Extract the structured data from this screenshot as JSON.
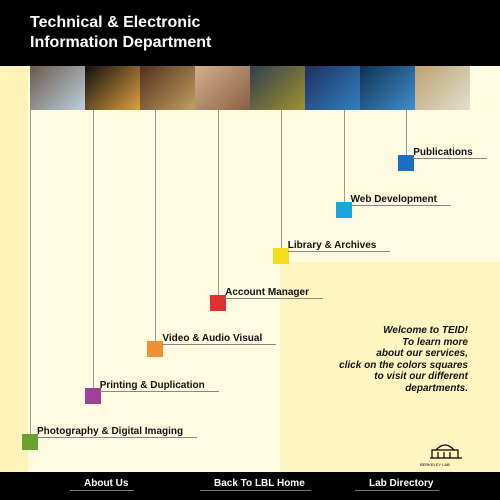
{
  "header": {
    "title_lines": [
      "Technical & Electronic",
      "Information Department"
    ]
  },
  "departments": [
    {
      "label": "Publications",
      "color": "#1a6fc4"
    },
    {
      "label": "Web Development",
      "color": "#1aa3e0"
    },
    {
      "label": "Library & Archives",
      "color": "#f5dc1c"
    },
    {
      "label": "Account Manager",
      "color": "#e03030"
    },
    {
      "label": "Video & Audio Visual",
      "color": "#f09030"
    },
    {
      "label": "Printing & Duplication",
      "color": "#a0409a"
    },
    {
      "label": "Photography & Digital Imaging",
      "color": "#6aa030"
    }
  ],
  "welcome": [
    "Welcome to TEID!",
    "To learn more",
    "about our services,",
    "click on the colors squares",
    "to visit our different",
    "departments."
  ],
  "logo": "BERKELEY LAB",
  "footer": [
    "About Us",
    "Back To LBL Home",
    "Lab Directory"
  ]
}
